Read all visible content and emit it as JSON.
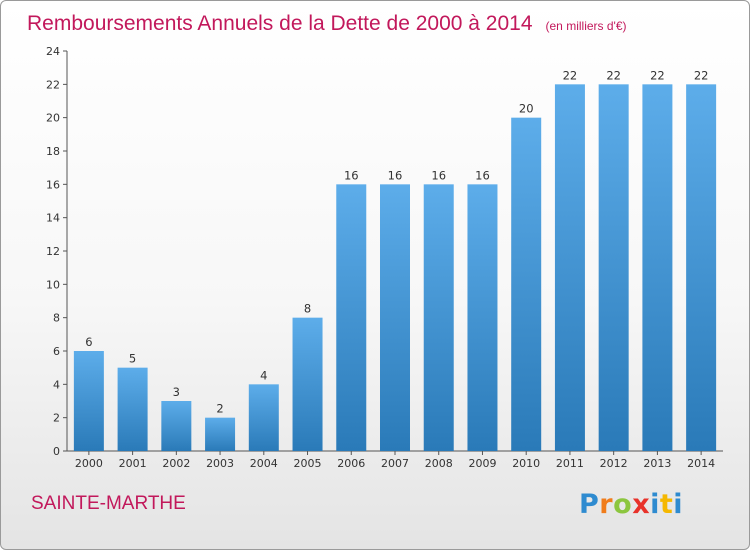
{
  "chart_data": {
    "type": "bar",
    "title": "Remboursements Annuels de la Dette de 2000 à 2014",
    "subtitle": "(en milliers d'€)",
    "categories": [
      "2000",
      "2001",
      "2002",
      "2003",
      "2004",
      "2005",
      "2006",
      "2007",
      "2008",
      "2009",
      "2010",
      "2011",
      "2012",
      "2013",
      "2014"
    ],
    "values": [
      6,
      5,
      3,
      2,
      4,
      8,
      16,
      16,
      16,
      16,
      20,
      22,
      22,
      22,
      22
    ],
    "ylim": [
      0,
      24
    ],
    "yticks": [
      0,
      2,
      4,
      6,
      8,
      10,
      12,
      14,
      16,
      18,
      20,
      22,
      24
    ],
    "xlabel": "",
    "ylabel": "",
    "grid": false,
    "bar_color_light": "#5dadea",
    "bar_color_dark": "#2a7ab8"
  },
  "footer": {
    "town": "SAINTE-MARTHE",
    "logo_letters": [
      {
        "ch": "P",
        "color": "#2e8bd0"
      },
      {
        "ch": "r",
        "color": "#f07c1a"
      },
      {
        "ch": "o",
        "color": "#8cc63f"
      },
      {
        "ch": "x",
        "color": "#e8322a"
      },
      {
        "ch": "i",
        "color": "#2e8bd0"
      },
      {
        "ch": "t",
        "color": "#f5b800"
      },
      {
        "ch": "i",
        "color": "#2e8bd0"
      }
    ]
  }
}
